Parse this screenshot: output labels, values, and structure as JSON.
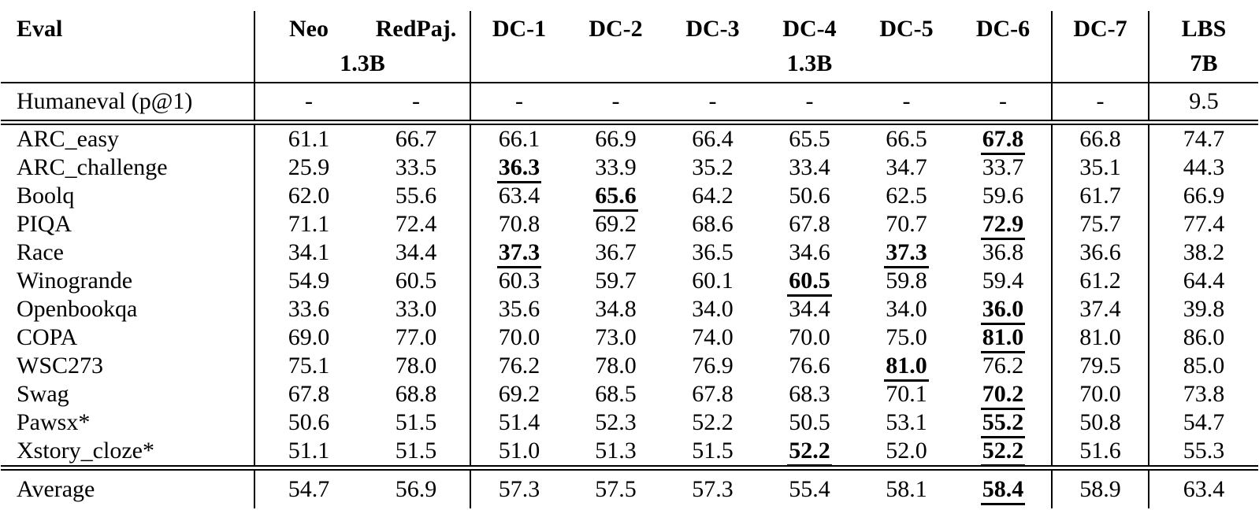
{
  "table": {
    "header": {
      "eval": "Eval",
      "cols": [
        "Neo",
        "RedPaj.",
        "DC-1",
        "DC-2",
        "DC-3",
        "DC-4",
        "DC-5",
        "DC-6",
        "DC-7",
        "LBS"
      ],
      "sub_group1": "1.3B",
      "sub_dc4": "1.3B",
      "sub_lbs": "7B"
    },
    "rows": [
      {
        "label": "Humaneval (p@1)",
        "section": "top",
        "rule_below": "double",
        "values": [
          "-",
          "-",
          "-",
          "-",
          "-",
          "-",
          "-",
          "-",
          "-",
          "9.5"
        ]
      },
      {
        "label": "ARC_easy",
        "values": [
          "61.1",
          "66.7",
          "66.1",
          "66.9",
          "66.4",
          "65.5",
          "66.5",
          {
            "v": "67.8",
            "best": true
          },
          "66.8",
          "74.7"
        ]
      },
      {
        "label": "ARC_challenge",
        "values": [
          "25.9",
          "33.5",
          {
            "v": "36.3",
            "best": true
          },
          "33.9",
          "35.2",
          "33.4",
          "34.7",
          "33.7",
          "35.1",
          "44.3"
        ]
      },
      {
        "label": "Boolq",
        "values": [
          "62.0",
          "55.6",
          "63.4",
          {
            "v": "65.6",
            "best": true
          },
          "64.2",
          "50.6",
          "62.5",
          "59.6",
          "61.7",
          "66.9"
        ]
      },
      {
        "label": "PIQA",
        "values": [
          "71.1",
          "72.4",
          "70.8",
          "69.2",
          "68.6",
          "67.8",
          "70.7",
          {
            "v": "72.9",
            "best": true
          },
          "75.7",
          "77.4"
        ]
      },
      {
        "label": "Race",
        "values": [
          "34.1",
          "34.4",
          {
            "v": "37.3",
            "best": true
          },
          "36.7",
          "36.5",
          "34.6",
          {
            "v": "37.3",
            "best": true
          },
          "36.8",
          "36.6",
          "38.2"
        ]
      },
      {
        "label": "Winogrande",
        "values": [
          "54.9",
          "60.5",
          "60.3",
          "59.7",
          "60.1",
          {
            "v": "60.5",
            "best": true
          },
          "59.8",
          "59.4",
          "61.2",
          "64.4"
        ]
      },
      {
        "label": "Openbookqa",
        "values": [
          "33.6",
          "33.0",
          "35.6",
          "34.8",
          "34.0",
          "34.4",
          "34.0",
          {
            "v": "36.0",
            "best": true
          },
          "37.4",
          "39.8"
        ]
      },
      {
        "label": "COPA",
        "values": [
          "69.0",
          "77.0",
          "70.0",
          "73.0",
          "74.0",
          "70.0",
          "75.0",
          {
            "v": "81.0",
            "best": true
          },
          "81.0",
          "86.0"
        ]
      },
      {
        "label": "WSC273",
        "values": [
          "75.1",
          "78.0",
          "76.2",
          "78.0",
          "76.9",
          "76.6",
          {
            "v": "81.0",
            "best": true
          },
          "76.2",
          "79.5",
          "85.0"
        ]
      },
      {
        "label": "Swag",
        "values": [
          "67.8",
          "68.8",
          "69.2",
          "68.5",
          "67.8",
          "68.3",
          "70.1",
          {
            "v": "70.2",
            "best": true
          },
          "70.0",
          "73.8"
        ]
      },
      {
        "label": "Pawsx*",
        "values": [
          "50.6",
          "51.5",
          "51.4",
          "52.3",
          "52.2",
          "50.5",
          "53.1",
          {
            "v": "55.2",
            "best": true
          },
          "50.8",
          "54.7"
        ]
      },
      {
        "label": "Xstory_cloze*",
        "rule_below": "double",
        "values": [
          "51.1",
          "51.5",
          "51.0",
          "51.3",
          "51.5",
          {
            "v": "52.2",
            "best": true
          },
          "52.0",
          {
            "v": "52.2",
            "best": true
          },
          "51.6",
          "55.3"
        ]
      },
      {
        "label": "Average",
        "section": "bottom",
        "values": [
          "54.7",
          "56.9",
          "57.3",
          "57.5",
          "57.3",
          "55.4",
          "58.1",
          {
            "v": "58.4",
            "best": true
          },
          "58.9",
          "63.4"
        ]
      }
    ]
  }
}
